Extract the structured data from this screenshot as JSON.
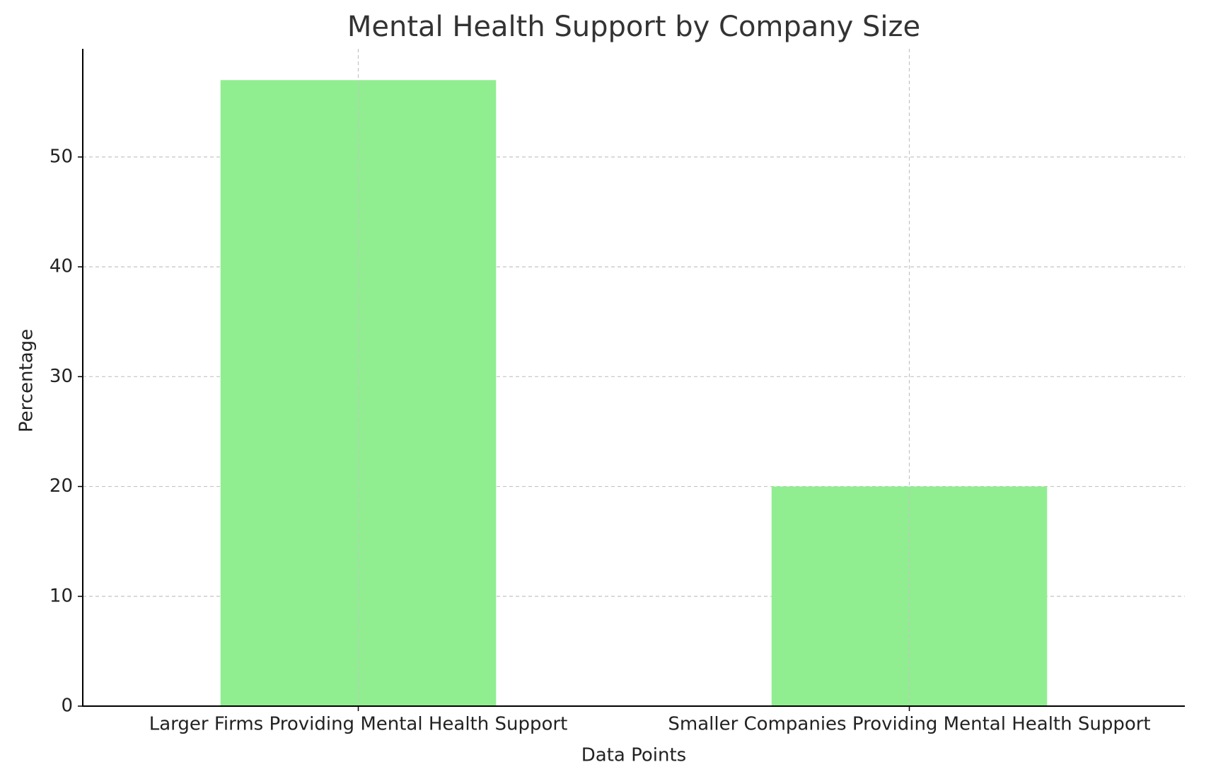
{
  "chart_data": {
    "type": "bar",
    "title": "Mental Health Support by Company Size",
    "x_label": "Data Points",
    "y_label": "Percentage",
    "categories": [
      "Larger Firms Providing Mental Health Support",
      "Smaller Companies Providing Mental Health Support"
    ],
    "values": [
      57,
      20
    ],
    "color": "#90ee90",
    "ylim": [
      0,
      59.85
    ],
    "yticks": [
      0,
      10,
      20,
      30,
      40,
      50
    ],
    "grid": true
  }
}
